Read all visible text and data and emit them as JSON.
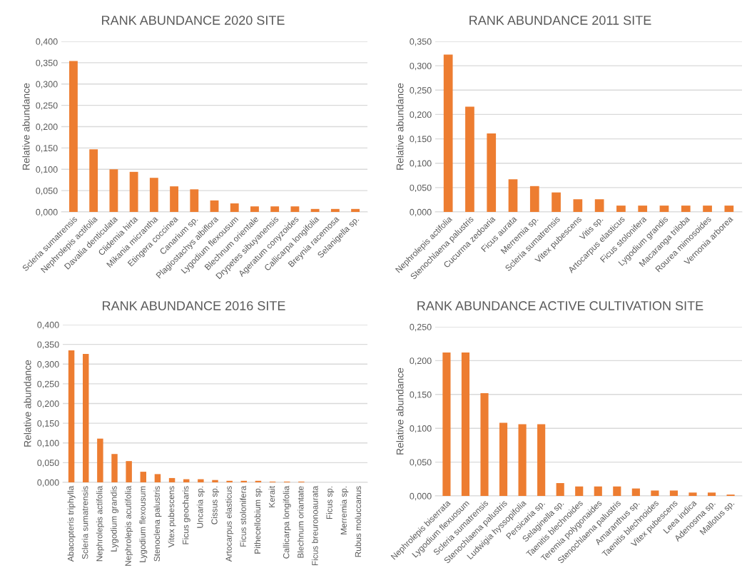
{
  "chart_data": [
    {
      "type": "bar",
      "title": "RANK ABUNDANCE 2020 SITE",
      "ylabel": "Relative abundance",
      "color": "#ed7d31",
      "grid": "y",
      "categories": [
        "Scleria sumatrensis",
        "Nephrolepis actifolia",
        "Davalia denticulata",
        "Clidemia hirta",
        "Mikania micrantha",
        "Etingera coccinea",
        "Canarium sp.",
        "Plagiostachys albiflora",
        "Lygodium flexousum",
        "Blechnum orientale",
        "Drypetes sibuyanensis",
        "Ageratum conyzoides",
        "Callicarpa longifolia",
        "Breynia racemosa",
        "Selanigella sp."
      ],
      "values": [
        0.354,
        0.147,
        0.1,
        0.094,
        0.08,
        0.06,
        0.053,
        0.027,
        0.02,
        0.013,
        0.013,
        0.013,
        0.007,
        0.007,
        0.007
      ],
      "ylim": [
        0,
        0.4
      ],
      "yticks": [
        {
          "value": 0,
          "label": "0,000"
        },
        {
          "value": 0.05,
          "label": "0,050"
        },
        {
          "value": 0.1,
          "label": "0,100"
        },
        {
          "value": 0.15,
          "label": "0,150"
        },
        {
          "value": 0.2,
          "label": "0,200"
        },
        {
          "value": 0.25,
          "label": "0,250"
        },
        {
          "value": 0.3,
          "label": "0,300"
        },
        {
          "value": 0.35,
          "label": "0,350"
        },
        {
          "value": 0.4,
          "label": "0,400"
        }
      ]
    },
    {
      "type": "bar",
      "title": "RANK ABUNDANCE 2011 SITE",
      "ylabel": "Relative abundance",
      "color": "#ed7d31",
      "grid": "y",
      "categories": [
        "Nephrolepis actifolia",
        "Stenochlaena palustris",
        "Cucurma zedoaria",
        "Ficus aurata",
        "Merremia sp.",
        "Scleria sumatrensis",
        "Vitex pubescens",
        "Vitis sp.",
        "Artocarpus elasticus",
        "Ficus stolonifera",
        "Lygodium grandis",
        "Macaranga triloba",
        "Rourea mimosoides",
        "Vernonia arborea"
      ],
      "values": [
        0.323,
        0.216,
        0.161,
        0.067,
        0.053,
        0.04,
        0.026,
        0.026,
        0.013,
        0.013,
        0.013,
        0.013,
        0.013,
        0.013
      ],
      "ylim": [
        0,
        0.35
      ],
      "yticks": [
        {
          "value": 0,
          "label": "0,000"
        },
        {
          "value": 0.05,
          "label": "0,050"
        },
        {
          "value": 0.1,
          "label": "0,100"
        },
        {
          "value": 0.15,
          "label": "0,150"
        },
        {
          "value": 0.2,
          "label": "0,200"
        },
        {
          "value": 0.25,
          "label": "0,250"
        },
        {
          "value": 0.3,
          "label": "0,300"
        },
        {
          "value": 0.35,
          "label": "0,350"
        }
      ]
    },
    {
      "type": "bar",
      "title": "RANK ABUNDANCE 2016 SITE",
      "ylabel": "Relative abundance",
      "color": "#ed7d31",
      "grid": "y",
      "categories": [
        "Abacopteris triphylla",
        "Scleria sumatrensis",
        "Nephrolepis actifolia",
        "Lygodium grandis",
        "Nephrolepis acutifolia",
        "Lygodium flexousum",
        "Stenoclena palustris",
        "Vitex pubescens",
        "Ficus geocharis",
        "Uncaria sp.",
        "Cissus sp.",
        "Artocarpus elasticus",
        "Ficus stolonifera",
        "Pithecellobium sp.",
        "Kerait",
        "Callicarpa longifolia",
        "Blechnum oriantate",
        "Ficus breuronoaurata",
        "Ficus sp.",
        "Merremia sp.",
        "Rubus moluccanus"
      ],
      "values": [
        0.335,
        0.326,
        0.111,
        0.072,
        0.054,
        0.027,
        0.021,
        0.011,
        0.008,
        0.008,
        0.006,
        0.004,
        0.004,
        0.004,
        0.002,
        0.002,
        0.002,
        0.0,
        0.0,
        0.0,
        0.0
      ],
      "ylim": [
        0,
        0.4
      ],
      "yticks": [
        {
          "value": 0,
          "label": "0,000"
        },
        {
          "value": 0.05,
          "label": "0,050"
        },
        {
          "value": 0.1,
          "label": "0,100"
        },
        {
          "value": 0.15,
          "label": "0,150"
        },
        {
          "value": 0.2,
          "label": "0,200"
        },
        {
          "value": 0.25,
          "label": "0,250"
        },
        {
          "value": 0.3,
          "label": "0,300"
        },
        {
          "value": 0.35,
          "label": "0,350"
        },
        {
          "value": 0.4,
          "label": "0,400"
        }
      ]
    },
    {
      "type": "bar",
      "title": "RANK ABUNDANCE ACTIVE CULTIVATION SITE",
      "ylabel": "Relative abundance",
      "color": "#ed7d31",
      "grid": "y",
      "categories": [
        "Nephrolepis biserrata",
        "Lygodium flexuosum",
        "Scleria sumatrensis",
        "Stenochlaena palustris",
        "Ludwigia hyssopifolia",
        "Persicaria sp.",
        "Selaginella sp.",
        "Taenitis blechnoides",
        "Teremia polygonaides",
        "Stenochlaena palustris",
        "Amaranthus sp.",
        "Taenitis blechnoides",
        "Vitex pubescens",
        "Leea indica",
        "Adenosma sp.",
        "Mallotus sp."
      ],
      "values": [
        0.212,
        0.212,
        0.152,
        0.108,
        0.106,
        0.106,
        0.019,
        0.014,
        0.014,
        0.014,
        0.011,
        0.008,
        0.008,
        0.005,
        0.005,
        0.002
      ],
      "ylim": [
        0,
        0.25
      ],
      "yticks": [
        {
          "value": 0,
          "label": "0,000"
        },
        {
          "value": 0.05,
          "label": "0,050"
        },
        {
          "value": 0.1,
          "label": "0,100"
        },
        {
          "value": 0.15,
          "label": "0,150"
        },
        {
          "value": 0.2,
          "label": "0,200"
        },
        {
          "value": 0.25,
          "label": "0,250"
        }
      ]
    }
  ]
}
